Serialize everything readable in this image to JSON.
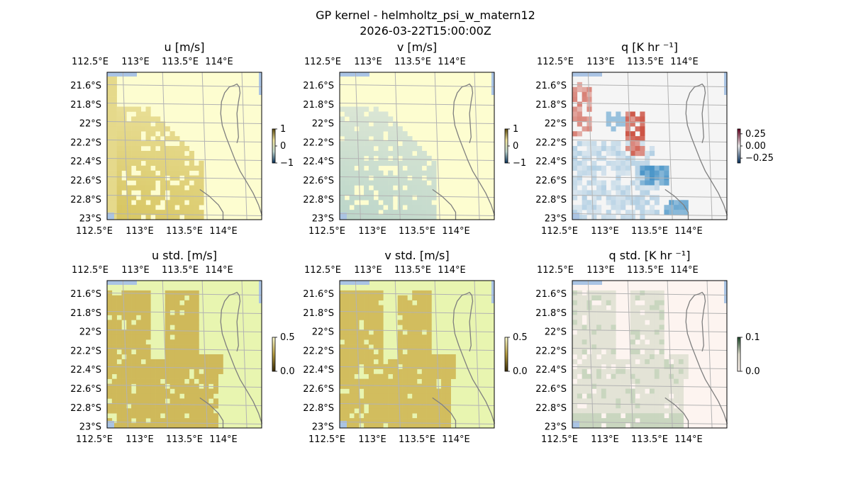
{
  "figure": {
    "title": "GP kernel - helmholtz_psi_w_matern12",
    "timestamp": "2026-03-22T15:00:00Z"
  },
  "chart_data": [
    {
      "type": "heatmap",
      "title": "u [m/s]",
      "colorbar": {
        "ticks": [
          "1",
          "0",
          "−1"
        ],
        "range": [
          -1,
          1
        ]
      },
      "lon_ticks": [
        "112.5°E",
        "113°E",
        "113.5°E",
        "114°E"
      ],
      "lat_ticks": [
        "21.6°S",
        "21.8°S",
        "22°S",
        "22.2°S",
        "22.4°S",
        "22.6°S",
        "22.8°S",
        "23°S"
      ],
      "colors": {
        "background": "#fdfdd0",
        "field": "#d7c560",
        "field_light": "#efe7a8"
      }
    },
    {
      "type": "heatmap",
      "title": "v [m/s]",
      "colorbar": {
        "ticks": [
          "1",
          "0",
          "−1"
        ],
        "range": [
          -1,
          1
        ]
      },
      "lon_ticks": [
        "112.5°E",
        "113°E",
        "113.5°E",
        "114°E"
      ],
      "lat_ticks": [
        "21.6°S",
        "21.8°S",
        "22°S",
        "22.2°S",
        "22.4°S",
        "22.6°S",
        "22.8°S",
        "23°S"
      ],
      "colors": {
        "background": "#fdfdd0",
        "field": "#bcd6ca",
        "field_light": "#e6ecd8"
      }
    },
    {
      "type": "heatmap",
      "title": "q [K hr ⁻¹]",
      "colorbar": {
        "ticks": [
          "0.25",
          "0.00",
          "−0.25"
        ],
        "range": [
          -0.35,
          0.35
        ]
      },
      "lon_ticks": [
        "112.5°E",
        "113°E",
        "113.5°E",
        "114°E"
      ],
      "lat_ticks": [
        "21.6°S",
        "21.8°S",
        "22°S",
        "22.2°S",
        "22.4°S",
        "22.6°S",
        "22.8°S",
        "23°S"
      ],
      "colors": {
        "background": "#f5f5f5",
        "positive": "#c8402f",
        "negative": "#3a8cc4"
      }
    },
    {
      "type": "heatmap",
      "title": "u std. [m/s]",
      "colorbar": {
        "ticks": [
          "0.5",
          "0.0"
        ],
        "range": [
          0,
          0.5
        ]
      },
      "lon_ticks": [
        "112.5°E",
        "113°E",
        "113.5°E",
        "114°E"
      ],
      "lat_ticks": [
        "21.6°S",
        "21.8°S",
        "22°S",
        "22.2°S",
        "22.4°S",
        "22.6°S",
        "22.8°S",
        "23°S"
      ],
      "colors": {
        "background": "#e8f5b0",
        "field": "#cfb95a"
      }
    },
    {
      "type": "heatmap",
      "title": "v std. [m/s]",
      "colorbar": {
        "ticks": [
          "0.5",
          "0.0"
        ],
        "range": [
          0,
          0.5
        ]
      },
      "lon_ticks": [
        "112.5°E",
        "113°E",
        "113.5°E",
        "114°E"
      ],
      "lat_ticks": [
        "21.6°S",
        "21.8°S",
        "22°S",
        "22.2°S",
        "22.4°S",
        "22.6°S",
        "22.8°S",
        "23°S"
      ],
      "colors": {
        "background": "#e8f5b0",
        "field": "#d2bd5e"
      }
    },
    {
      "type": "heatmap",
      "title": "q std. [K hr ⁻¹]",
      "colorbar": {
        "ticks": [
          "0.1",
          "0.0"
        ],
        "range": [
          0,
          0.1
        ]
      },
      "lon_ticks": [
        "112.5°E",
        "113°E",
        "113.5°E",
        "114°E"
      ],
      "lat_ticks": [
        "21.6°S",
        "21.8°S",
        "22°S",
        "22.2°S",
        "22.4°S",
        "22.6°S",
        "22.8°S",
        "23°S"
      ],
      "colors": {
        "background": "#fdf4f0",
        "field": "#e3e3d6",
        "field_accent": "#c9d6bf"
      }
    }
  ]
}
